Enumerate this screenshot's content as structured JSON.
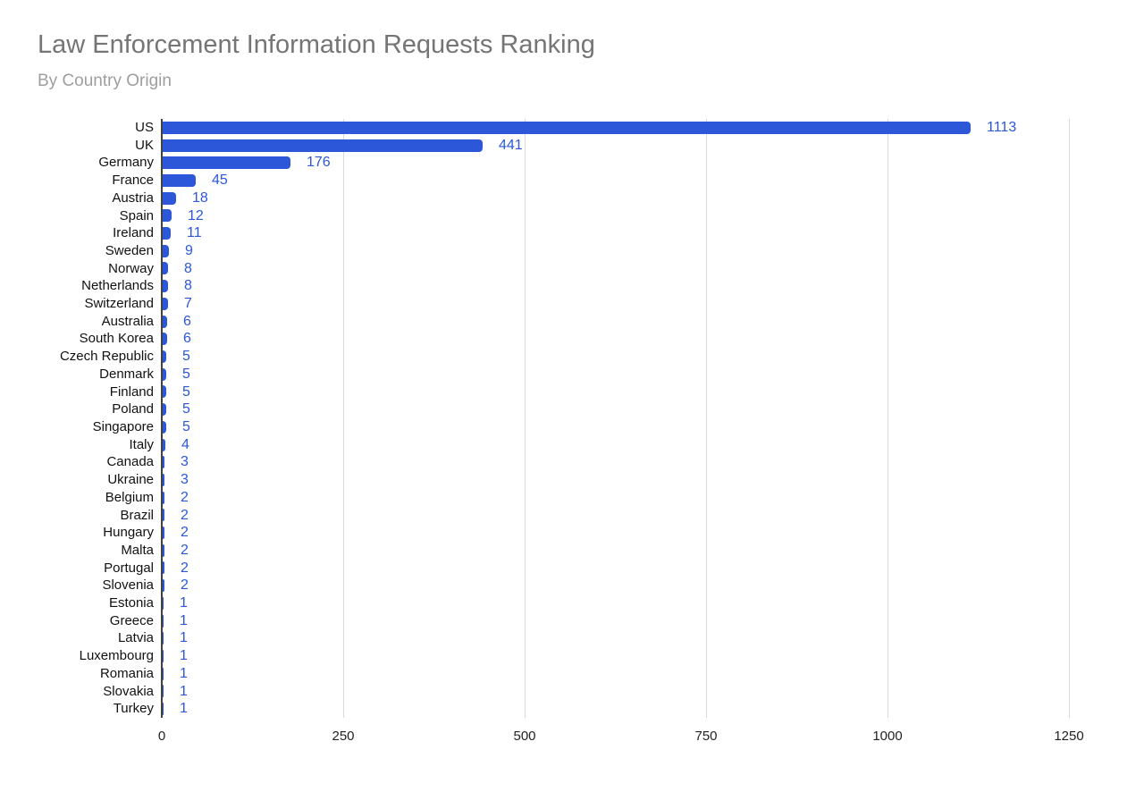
{
  "header": {
    "title": "Law Enforcement Information Requests Ranking",
    "subtitle": "By Country Origin"
  },
  "colors": {
    "bar": "#2b57d8",
    "value_label": "#2b57d8",
    "title": "#757575",
    "subtitle": "#9e9e9e",
    "gridline": "#d9d9d9",
    "axis_line": "#424242",
    "category_text": "#111111",
    "tick_text": "#222222",
    "background": "#ffffff"
  },
  "chart_data": {
    "type": "bar",
    "orientation": "horizontal",
    "title": "Law Enforcement Information Requests Ranking",
    "subtitle": "By Country Origin",
    "categories": [
      "US",
      "UK",
      "Germany",
      "France",
      "Austria",
      "Spain",
      "Ireland",
      "Sweden",
      "Norway",
      "Netherlands",
      "Switzerland",
      "Australia",
      "South Korea",
      "Czech Republic",
      "Denmark",
      "Finland",
      "Poland",
      "Singapore",
      "Italy",
      "Canada",
      "Ukraine",
      "Belgium",
      "Brazil",
      "Hungary",
      "Malta",
      "Portugal",
      "Slovenia",
      "Estonia",
      "Greece",
      "Latvia",
      "Luxembourg",
      "Romania",
      "Slovakia",
      "Turkey"
    ],
    "values": [
      1113,
      441,
      176,
      45,
      18,
      12,
      11,
      9,
      8,
      8,
      7,
      6,
      6,
      5,
      5,
      5,
      5,
      5,
      4,
      3,
      3,
      2,
      2,
      2,
      2,
      2,
      2,
      1,
      1,
      1,
      1,
      1,
      1,
      1
    ],
    "xlabel": "",
    "ylabel": "",
    "xlim": [
      0,
      1250
    ],
    "x_ticks": [
      0,
      250,
      500,
      750,
      1000,
      1250
    ],
    "grid": true,
    "legend": "none",
    "value_labels": true
  }
}
